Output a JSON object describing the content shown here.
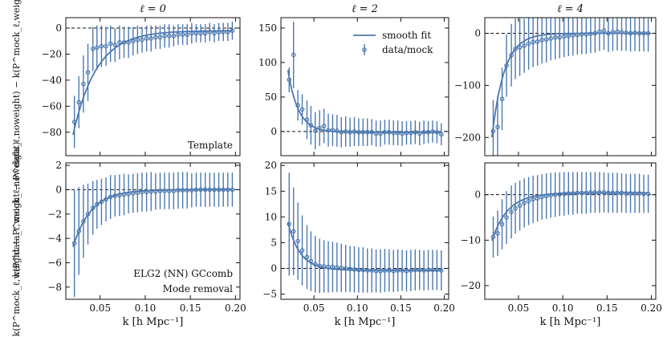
{
  "figure": {
    "ylabel_top": "k(P^data_ℓ,weight − P^data_ℓ,noweight) − k(P^mock_ℓ,weight − P^mock_ℓ,noweight)",
    "ylabel_bottom": "k(P^mock_ℓ,weight − P^mock_ℓ,noweight)",
    "xlabel": "k [h Mpc⁻¹]",
    "legend": {
      "fit": "smooth fit",
      "data": "data/mock"
    },
    "annotations": {
      "template": "Template",
      "sample": "ELG2 (NN) GCcomb",
      "method": "Mode removal"
    },
    "colors": {
      "series": "#4c78b0",
      "axis": "#111111",
      "zero_line": "#111111"
    }
  },
  "chart_data": [
    {
      "type": "scatter",
      "panel": "top-left",
      "title": "ℓ = 0",
      "xlim": [
        0.012,
        0.205
      ],
      "ylim": [
        -98,
        8
      ],
      "yticks": [
        0,
        -20,
        -40,
        -60,
        -80
      ],
      "ytick_labels": [
        "0",
        "−20",
        "−40",
        "−60",
        "−80"
      ],
      "xticks": [
        0.05,
        0.1,
        0.15,
        0.2
      ],
      "x": [
        0.0215,
        0.0265,
        0.0315,
        0.0365,
        0.042,
        0.0465,
        0.0515,
        0.0565,
        0.0615,
        0.0665,
        0.0715,
        0.0765,
        0.0815,
        0.0865,
        0.0915,
        0.0965,
        0.1015,
        0.1065,
        0.1115,
        0.1165,
        0.1215,
        0.1265,
        0.1315,
        0.1365,
        0.1415,
        0.1465,
        0.1515,
        0.1565,
        0.1615,
        0.1665,
        0.1715,
        0.1765,
        0.1815,
        0.1865,
        0.1915,
        0.1965
      ],
      "y": [
        -72,
        -57,
        -43,
        -34,
        -16,
        -15,
        -14,
        -14,
        -12,
        -13,
        -11,
        -11,
        -11,
        -10,
        -9,
        -9,
        -8,
        -8,
        -7,
        -7,
        -6,
        -6,
        -6,
        -5,
        -5,
        -5,
        -4,
        -4,
        -4,
        -4,
        -3,
        -4,
        -3,
        -3,
        -3,
        -2
      ],
      "yerr": [
        20,
        20,
        22,
        22,
        17,
        17,
        16,
        15,
        14,
        13,
        13,
        12,
        12,
        11,
        11,
        10,
        10,
        10,
        9,
        9,
        9,
        9,
        8,
        8,
        8,
        8,
        8,
        7,
        7,
        7,
        7,
        7,
        7,
        7,
        7,
        7
      ],
      "fit": {
        "x0": 0.02,
        "amp": -80,
        "scale": 0.026,
        "offset": -2
      },
      "annotation": "Template"
    },
    {
      "type": "scatter",
      "panel": "top-middle",
      "title": "ℓ = 2",
      "xlim": [
        0.012,
        0.205
      ],
      "ylim": [
        -35,
        165
      ],
      "yticks": [
        0,
        50,
        100,
        150
      ],
      "ytick_labels": [
        "0",
        "50",
        "100",
        "150"
      ],
      "xticks": [
        0.05,
        0.1,
        0.15,
        0.2
      ],
      "x": [
        0.0215,
        0.0265,
        0.0315,
        0.0365,
        0.042,
        0.0465,
        0.0515,
        0.0565,
        0.0615,
        0.0665,
        0.0715,
        0.0765,
        0.0815,
        0.0865,
        0.0915,
        0.0965,
        0.1015,
        0.1065,
        0.1115,
        0.1165,
        0.1215,
        0.1265,
        0.1315,
        0.1365,
        0.1415,
        0.1465,
        0.1515,
        0.1565,
        0.1615,
        0.1665,
        0.1715,
        0.1765,
        0.1815,
        0.1865,
        0.1915,
        0.1965
      ],
      "y": [
        75,
        111,
        38,
        32,
        17,
        9,
        1,
        5,
        8,
        2,
        2,
        1,
        -1,
        0,
        -1,
        0,
        -1,
        -1,
        -1,
        -1,
        -3,
        -3,
        -1,
        -1,
        -2,
        -2,
        -3,
        -2,
        -2,
        -1,
        -3,
        -1,
        -1,
        0,
        -1,
        -4
      ],
      "yerr": [
        18,
        48,
        22,
        22,
        28,
        28,
        27,
        26,
        25,
        24,
        23,
        23,
        22,
        22,
        21,
        21,
        20,
        20,
        20,
        19,
        19,
        19,
        18,
        18,
        18,
        18,
        18,
        17,
        17,
        17,
        17,
        17,
        16,
        16,
        16,
        16
      ],
      "fit": {
        "x0": 0.02,
        "amp": 90,
        "scale": 0.012,
        "offset": -1
      },
      "legend": "top-right"
    },
    {
      "type": "scatter",
      "panel": "top-right",
      "title": "ℓ = 4",
      "xlim": [
        0.012,
        0.205
      ],
      "ylim": [
        -235,
        30
      ],
      "yticks": [
        0,
        -100,
        -200
      ],
      "ytick_labels": [
        "0",
        "−100",
        "−200"
      ],
      "xticks": [
        0.05,
        0.1,
        0.15,
        0.2
      ],
      "x": [
        0.0215,
        0.0265,
        0.0315,
        0.0365,
        0.042,
        0.0465,
        0.0515,
        0.0565,
        0.0615,
        0.0665,
        0.0715,
        0.0765,
        0.0815,
        0.0865,
        0.0915,
        0.0965,
        0.1015,
        0.1065,
        0.1115,
        0.1165,
        0.1215,
        0.1265,
        0.1315,
        0.1365,
        0.1415,
        0.1465,
        0.1515,
        0.1565,
        0.1615,
        0.1665,
        0.1715,
        0.1765,
        0.1815,
        0.1865,
        0.1915,
        0.1965
      ],
      "y": [
        -188,
        -180,
        -126,
        -62,
        -42,
        -30,
        -27,
        -24,
        -20,
        -17,
        -16,
        -13,
        -12,
        -10,
        -8,
        -8,
        -6,
        -5,
        -4,
        -3,
        -2,
        -2,
        -1,
        0,
        3,
        5,
        0,
        2,
        3,
        2,
        1,
        0,
        1,
        0,
        0,
        0
      ],
      "yerr": [
        60,
        60,
        60,
        60,
        60,
        58,
        55,
        52,
        50,
        48,
        46,
        45,
        44,
        42,
        42,
        40,
        40,
        39,
        39,
        38,
        38,
        38,
        37,
        37,
        37,
        37,
        36,
        36,
        36,
        36,
        35,
        35,
        35,
        35,
        35,
        35
      ],
      "fit": {
        "x0": 0.02,
        "amp": -200,
        "scale": 0.014,
        "offset": 0
      }
    },
    {
      "type": "scatter",
      "panel": "bottom-left",
      "title": "",
      "xlim": [
        0.012,
        0.205
      ],
      "ylim": [
        -9,
        2.2
      ],
      "yticks": [
        2,
        0,
        -2,
        -4,
        -6,
        -8
      ],
      "ytick_labels": [
        "2",
        "0",
        "−2",
        "−4",
        "−6",
        "−8"
      ],
      "xticks": [
        0.05,
        0.1,
        0.15,
        0.2
      ],
      "xtick_labels": [
        "0.05",
        "0.10",
        "0.15",
        "0.20"
      ],
      "x": [
        0.0215,
        0.0265,
        0.0315,
        0.0365,
        0.042,
        0.0465,
        0.0515,
        0.0565,
        0.0615,
        0.0665,
        0.0715,
        0.0765,
        0.0815,
        0.0865,
        0.0915,
        0.0965,
        0.1015,
        0.1065,
        0.1115,
        0.1165,
        0.1215,
        0.1265,
        0.1315,
        0.1365,
        0.1415,
        0.1465,
        0.1515,
        0.1565,
        0.1615,
        0.1665,
        0.1715,
        0.1765,
        0.1815,
        0.1865,
        0.1915,
        0.1965
      ],
      "y": [
        -4.4,
        -3.4,
        -2.6,
        -2.0,
        -1.5,
        -1.2,
        -1.0,
        -0.8,
        -0.6,
        -0.5,
        -0.45,
        -0.4,
        -0.35,
        -0.3,
        -0.25,
        -0.2,
        -0.2,
        -0.15,
        -0.15,
        -0.1,
        -0.1,
        -0.1,
        -0.1,
        -0.05,
        -0.05,
        -0.05,
        -0.05,
        0,
        0,
        0,
        0,
        0,
        0,
        0,
        0,
        0
      ],
      "yerr": [
        4.4,
        3.6,
        3.0,
        2.5,
        2.2,
        2.0,
        1.9,
        1.8,
        1.8,
        1.7,
        1.7,
        1.7,
        1.6,
        1.6,
        1.6,
        1.6,
        1.6,
        1.6,
        1.5,
        1.5,
        1.5,
        1.5,
        1.5,
        1.5,
        1.5,
        1.5,
        1.4,
        1.4,
        1.4,
        1.4,
        1.4,
        1.4,
        1.4,
        1.4,
        1.4,
        1.4
      ],
      "fit": {
        "x0": 0.02,
        "amp": -4.7,
        "scale": 0.02,
        "offset": 0
      },
      "annotation": [
        "ELG2 (NN) GCcomb",
        "Mode removal"
      ]
    },
    {
      "type": "scatter",
      "panel": "bottom-middle",
      "title": "",
      "xlim": [
        0.012,
        0.205
      ],
      "ylim": [
        -6,
        20.5
      ],
      "yticks": [
        20,
        15,
        10,
        5,
        0,
        -5
      ],
      "ytick_labels": [
        "20",
        "15",
        "10",
        "5",
        "0",
        "−5"
      ],
      "xticks": [
        0.05,
        0.1,
        0.15,
        0.2
      ],
      "xtick_labels": [
        "0.05",
        "0.10",
        "0.15",
        "0.20"
      ],
      "x": [
        0.0215,
        0.0265,
        0.0315,
        0.0365,
        0.042,
        0.0465,
        0.0515,
        0.0565,
        0.0615,
        0.0665,
        0.0715,
        0.0765,
        0.0815,
        0.0865,
        0.0915,
        0.0965,
        0.1015,
        0.1065,
        0.1115,
        0.1165,
        0.1215,
        0.1265,
        0.1315,
        0.1365,
        0.1415,
        0.1465,
        0.1515,
        0.1565,
        0.1615,
        0.1665,
        0.1715,
        0.1765,
        0.1815,
        0.1865,
        0.1915,
        0.1965
      ],
      "y": [
        8.6,
        7.2,
        5.3,
        3.5,
        2.2,
        1.4,
        0.8,
        0.5,
        0.4,
        0.3,
        0.3,
        0.2,
        0.1,
        0,
        -0.1,
        -0.2,
        -0.3,
        -0.3,
        -0.4,
        -0.4,
        -0.5,
        -0.5,
        -0.4,
        -0.4,
        -0.5,
        -0.4,
        -0.4,
        -0.5,
        -0.4,
        -0.3,
        -0.3,
        -0.4,
        -0.3,
        -0.3,
        -0.3,
        -0.4
      ],
      "yerr": [
        10,
        8.5,
        7.5,
        6.8,
        6.2,
        5.8,
        5.5,
        5.3,
        5.1,
        5.0,
        4.9,
        4.8,
        4.7,
        4.6,
        4.5,
        4.5,
        4.4,
        4.4,
        4.3,
        4.3,
        4.2,
        4.2,
        4.2,
        4.1,
        4.1,
        4.1,
        4.0,
        4.0,
        4.0,
        4.0,
        3.9,
        3.9,
        3.9,
        3.9,
        3.9,
        3.9
      ],
      "fit": {
        "x0": 0.02,
        "amp": 9.3,
        "scale": 0.014,
        "offset": -0.35
      }
    },
    {
      "type": "scatter",
      "panel": "bottom-right",
      "title": "",
      "xlim": [
        0.012,
        0.205
      ],
      "ylim": [
        -23,
        7
      ],
      "yticks": [
        0,
        -10,
        -20
      ],
      "ytick_labels": [
        "0",
        "−10",
        "−20"
      ],
      "xticks": [
        0.05,
        0.1,
        0.15,
        0.2
      ],
      "xtick_labels": [
        "0.05",
        "0.10",
        "0.15",
        "0.20"
      ],
      "x": [
        0.0215,
        0.0265,
        0.0315,
        0.0365,
        0.042,
        0.0465,
        0.0515,
        0.0565,
        0.0615,
        0.0665,
        0.0715,
        0.0765,
        0.0815,
        0.0865,
        0.0915,
        0.0965,
        0.1015,
        0.1065,
        0.1115,
        0.1165,
        0.1215,
        0.1265,
        0.1315,
        0.1365,
        0.1415,
        0.1465,
        0.1515,
        0.1565,
        0.1615,
        0.1665,
        0.1715,
        0.1765,
        0.1815,
        0.1865,
        0.1915,
        0.1965
      ],
      "y": [
        -9.3,
        -8.5,
        -6.5,
        -5.0,
        -3.8,
        -3.0,
        -2.4,
        -1.8,
        -1.4,
        -1.0,
        -0.8,
        -0.5,
        -0.3,
        -0.1,
        0,
        0.1,
        0.2,
        0.3,
        0.3,
        0.4,
        0.4,
        0.4,
        0.5,
        0.5,
        0.5,
        0.5,
        0.4,
        0.4,
        0.4,
        0.4,
        0.3,
        0.3,
        0.3,
        0.3,
        0.2,
        0.2
      ],
      "yerr": [
        4.5,
        5,
        5.5,
        5.8,
        5.8,
        5.6,
        5.5,
        5.4,
        5.3,
        5.2,
        5.1,
        5.0,
        5.0,
        4.9,
        4.9,
        4.8,
        4.8,
        4.7,
        4.7,
        4.6,
        4.6,
        4.6,
        4.5,
        4.5,
        4.5,
        4.4,
        4.4,
        4.4,
        4.4,
        4.3,
        4.3,
        4.3,
        4.3,
        4.3,
        4.2,
        4.2
      ],
      "fit": {
        "x0": 0.02,
        "amp": -10.5,
        "scale": 0.018,
        "offset": 0.4
      }
    }
  ]
}
